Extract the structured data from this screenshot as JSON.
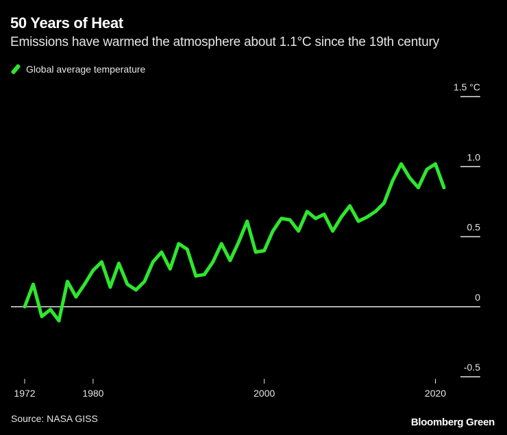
{
  "header": {
    "title": "50 Years of Heat",
    "subtitle": "Emissions have warmed the atmosphere about 1.1°C since the 19th century"
  },
  "legend": {
    "label": "Global average temperature"
  },
  "footer": {
    "source": "Source: NASA GISS",
    "brand": "Bloomberg Green"
  },
  "colors": {
    "background": "#000000",
    "line": "#2ee62e",
    "axis": "#e6e6e6",
    "text": "#e6e6e6"
  },
  "chart_data": {
    "type": "line",
    "title": "50 Years of Heat",
    "subtitle": "Emissions have warmed the atmosphere about 1.1°C since the 19th century",
    "xlabel": "",
    "ylabel": "°C",
    "xlim": [
      1972,
      2021
    ],
    "ylim": [
      -0.5,
      1.5
    ],
    "grid": false,
    "legend_position": "top-left",
    "x_ticks": [
      1972,
      1980,
      2000,
      2020
    ],
    "x_tick_labels": [
      "1972",
      "1980",
      "2000",
      "2020"
    ],
    "y_ticks": [
      -0.5,
      0,
      0.5,
      1.0,
      1.5
    ],
    "y_tick_labels": [
      "-0.5",
      "0",
      "0.5",
      "1.0",
      "1.5 °C"
    ],
    "series": [
      {
        "name": "Global average temperature",
        "x": [
          1972,
          1973,
          1974,
          1975,
          1976,
          1977,
          1978,
          1979,
          1980,
          1981,
          1982,
          1983,
          1984,
          1985,
          1986,
          1987,
          1988,
          1989,
          1990,
          1991,
          1992,
          1993,
          1994,
          1995,
          1996,
          1997,
          1998,
          1999,
          2000,
          2001,
          2002,
          2003,
          2004,
          2005,
          2006,
          2007,
          2008,
          2009,
          2010,
          2011,
          2012,
          2013,
          2014,
          2015,
          2016,
          2017,
          2018,
          2019,
          2020,
          2021
        ],
        "values": [
          0.0,
          0.16,
          -0.07,
          -0.02,
          -0.1,
          0.18,
          0.07,
          0.16,
          0.26,
          0.32,
          0.14,
          0.31,
          0.16,
          0.12,
          0.18,
          0.32,
          0.39,
          0.27,
          0.45,
          0.41,
          0.22,
          0.23,
          0.32,
          0.45,
          0.33,
          0.46,
          0.61,
          0.39,
          0.4,
          0.54,
          0.63,
          0.62,
          0.54,
          0.68,
          0.63,
          0.66,
          0.54,
          0.64,
          0.72,
          0.61,
          0.64,
          0.68,
          0.74,
          0.9,
          1.02,
          0.92,
          0.85,
          0.98,
          1.02,
          0.85
        ]
      }
    ],
    "annotations": []
  }
}
